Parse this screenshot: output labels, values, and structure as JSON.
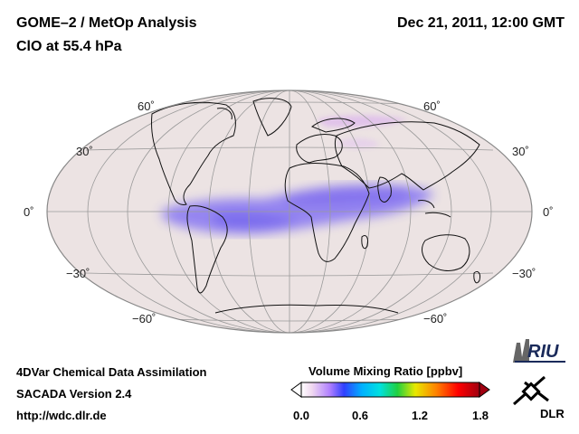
{
  "header": {
    "title": "GOME–2 / MetOp Analysis",
    "species": "ClO at 55.4 hPa",
    "datetime": "Dec 21, 2011, 12:00 GMT"
  },
  "map": {
    "projection": "Hammer-Aitoff (global)",
    "lat_labels": [
      "60˚",
      "30˚",
      "0˚",
      "−30˚",
      "−60˚"
    ],
    "field_description": "ClO enhancement band along tropics",
    "colors": {
      "background": "#ece3e3",
      "land_outline": "#000000",
      "grid": "#9a9a9a",
      "enhancement": "#8878f0"
    }
  },
  "colorbar": {
    "title": "Volume Mixing Ratio [ppbv]",
    "ticks": [
      "0.0",
      "0.6",
      "1.2",
      "1.8"
    ],
    "tick_values": [
      0.0,
      0.6,
      1.2,
      1.8
    ],
    "range": [
      0.0,
      1.8
    ],
    "colors": [
      "#ffffff",
      "#f0d8f0",
      "#b080ff",
      "#3040ff",
      "#00b0ff",
      "#00e0e0",
      "#20d040",
      "#e8e800",
      "#ff8000",
      "#ff0000",
      "#a00010"
    ]
  },
  "footer": {
    "line1": "4DVar Chemical Data Assimilation",
    "line2": "SACADA Version 2.4",
    "line3": "http://wdc.dlr.de"
  },
  "logos": {
    "riu": "RIU",
    "dlr": "DLR"
  }
}
